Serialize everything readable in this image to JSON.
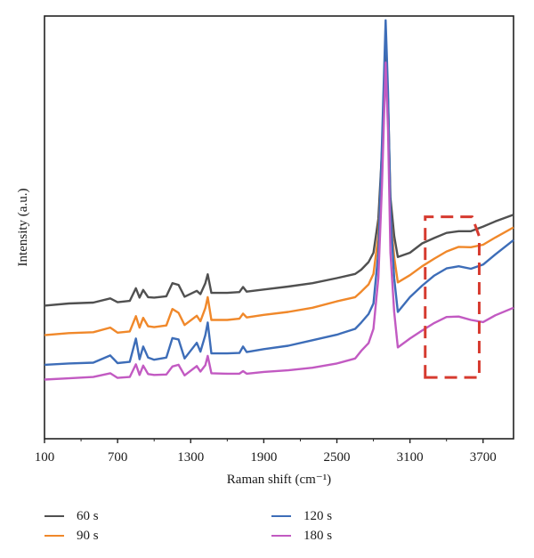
{
  "chart_data": {
    "type": "line",
    "xlabel": "Raman shift (cm⁻¹)",
    "ylabel": "Intensity (a.u.)",
    "xlim": [
      100,
      3950
    ],
    "ylim": [
      0,
      100
    ],
    "xticks": [
      "100",
      "700",
      "1300",
      "1900",
      "2500",
      "3100",
      "3700"
    ],
    "xtick_values": [
      100,
      700,
      1300,
      1900,
      2500,
      3100,
      3700
    ],
    "grid": false,
    "legend_position": "bottom",
    "x": [
      100,
      300,
      500,
      640,
      700,
      800,
      850,
      880,
      910,
      950,
      1000,
      1100,
      1150,
      1200,
      1250,
      1350,
      1380,
      1420,
      1440,
      1470,
      1600,
      1700,
      1730,
      1760,
      1900,
      2100,
      2300,
      2500,
      2650,
      2700,
      2760,
      2800,
      2840,
      2870,
      2900,
      2920,
      2940,
      2970,
      3000,
      3100,
      3200,
      3300,
      3400,
      3500,
      3600,
      3700,
      3800,
      3950
    ],
    "series": [
      {
        "name": "60 s",
        "color": "#505050",
        "values": [
          31.5,
          32,
          32.2,
          33.2,
          32.3,
          32.6,
          35.6,
          33.4,
          35.2,
          33.5,
          33.4,
          33.7,
          36.8,
          36.4,
          33.6,
          35,
          34.2,
          36.8,
          38.9,
          34.5,
          34.5,
          34.7,
          35.9,
          34.8,
          35.3,
          36,
          36.8,
          38,
          39,
          40,
          41.8,
          44,
          52,
          68,
          91,
          80,
          57,
          48,
          43,
          44,
          46.2,
          47.5,
          48.7,
          49.1,
          49.1,
          50.2,
          51.4,
          53
        ]
      },
      {
        "name": "90 s",
        "color": "#f0882a",
        "values": [
          24.5,
          25,
          25.2,
          26.3,
          25.1,
          25.4,
          29,
          26.3,
          28.6,
          26.6,
          26.4,
          26.8,
          30.7,
          29.8,
          26.9,
          29.1,
          27.8,
          30.9,
          33.5,
          28.1,
          28.1,
          28.4,
          29.6,
          28.7,
          29.3,
          30,
          31,
          32.5,
          33.5,
          34.8,
          36.5,
          39,
          48,
          65,
          88,
          76,
          53,
          43,
          37,
          38.7,
          40.8,
          42.6,
          44.3,
          45.4,
          45.3,
          45.9,
          47.6,
          50
        ]
      },
      {
        "name": "120 s",
        "color": "#3d6db8",
        "values": [
          17.5,
          17.8,
          18,
          19.7,
          17.9,
          18.2,
          23.7,
          18.8,
          21.8,
          19.2,
          18.7,
          19.2,
          23.8,
          23.5,
          19,
          22.7,
          20.6,
          24.5,
          27.5,
          20.2,
          20.2,
          20.3,
          21.8,
          20.5,
          21.2,
          22,
          23.3,
          24.6,
          26,
          27.5,
          29.5,
          32,
          44,
          70,
          99,
          82,
          54,
          38,
          30,
          33.5,
          36.2,
          38.6,
          40.3,
          40.8,
          40.2,
          41.2,
          43.6,
          47
        ]
      },
      {
        "name": "180 s",
        "color": "#c25ac2",
        "values": [
          14,
          14.3,
          14.6,
          15.5,
          14.4,
          14.6,
          17.6,
          15.1,
          17.3,
          15.3,
          15.1,
          15.2,
          17.1,
          17.5,
          15,
          17.2,
          15.9,
          17.4,
          19.6,
          15.5,
          15.4,
          15.4,
          16,
          15.4,
          15.8,
          16.2,
          16.8,
          17.8,
          19,
          20.8,
          22.6,
          26,
          38,
          60,
          89,
          73,
          44,
          30,
          21.6,
          23.7,
          25.6,
          27.4,
          28.8,
          28.9,
          28.1,
          27.6,
          29.2,
          31
        ]
      }
    ]
  }
}
